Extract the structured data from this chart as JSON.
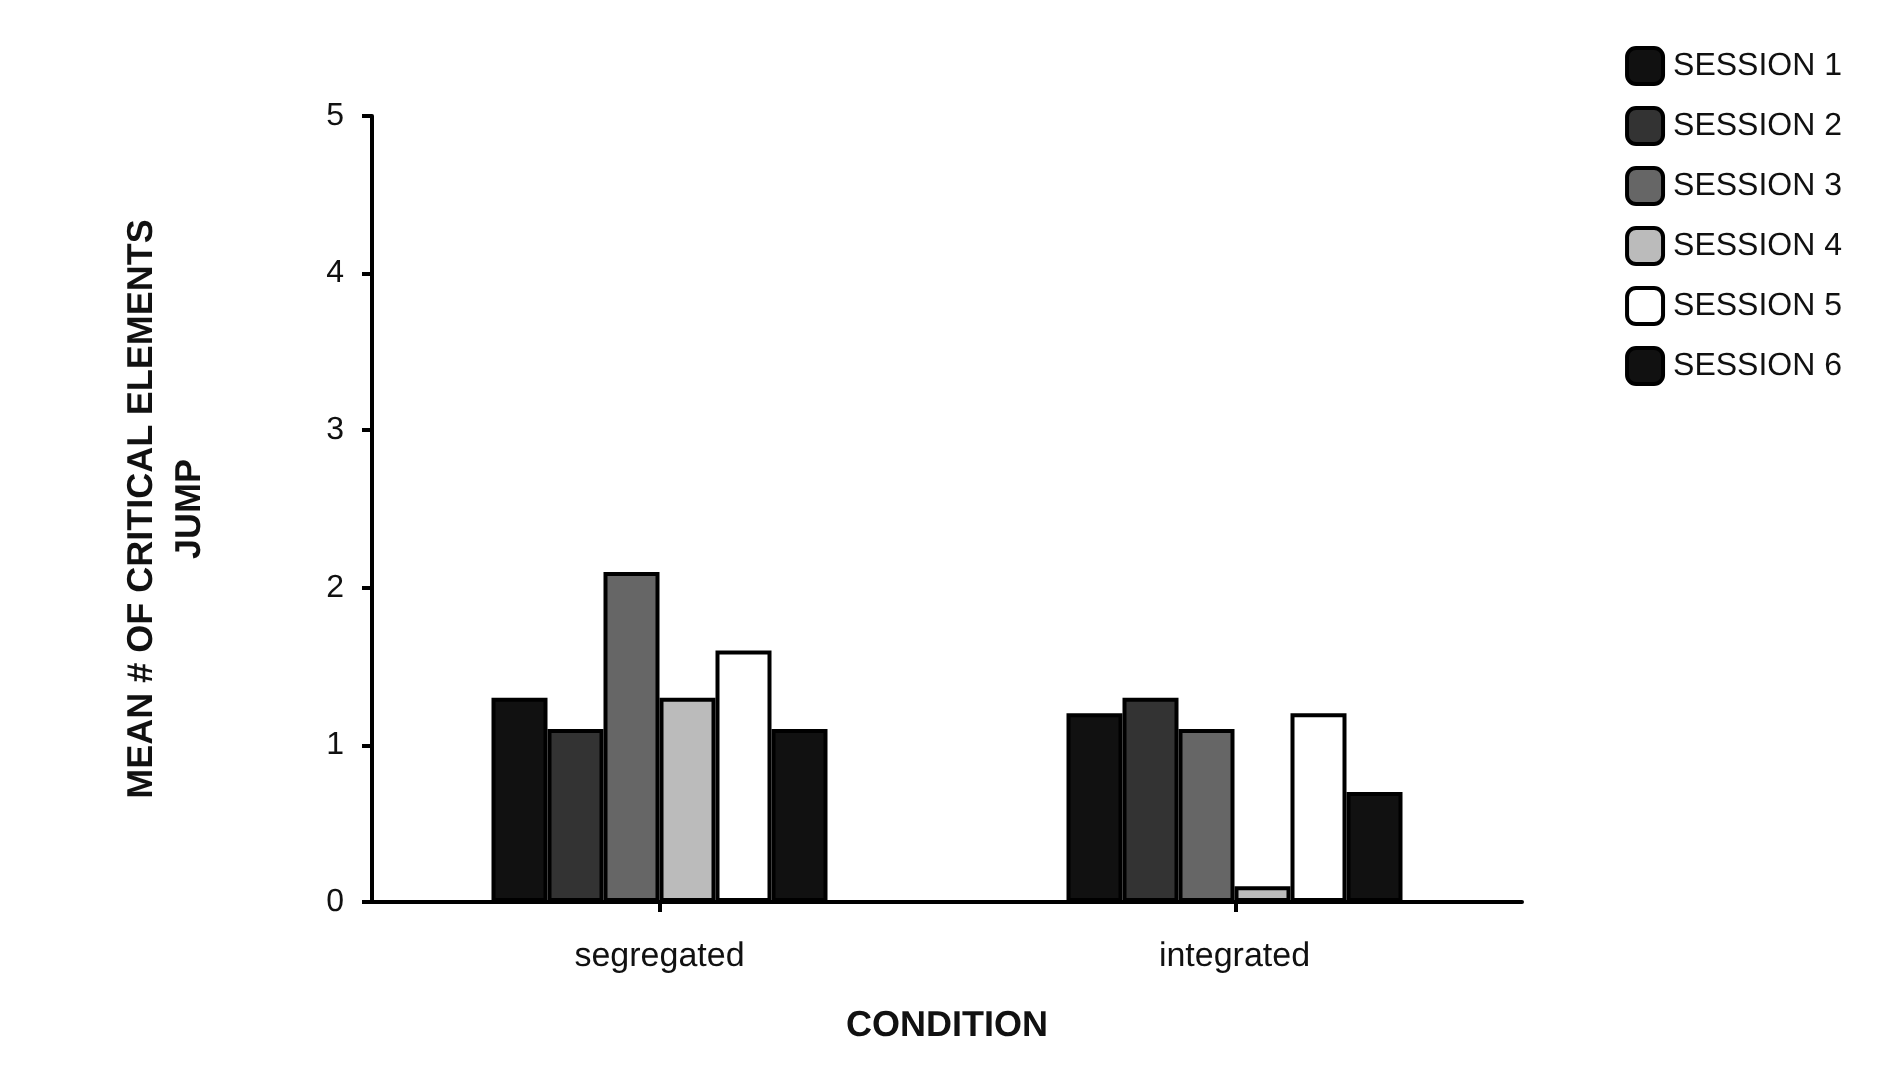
{
  "chart_data": {
    "type": "bar",
    "xlabel": "CONDITION",
    "ylabel": "MEAN # OF CRITICAL ELEMENTS\nJUMP",
    "categories": [
      "segregated",
      "integrated"
    ],
    "series": [
      {
        "name": "SESSION 1",
        "color": "#111111",
        "values": [
          1.3,
          1.2
        ]
      },
      {
        "name": "SESSION 2",
        "color": "#333333",
        "values": [
          1.1,
          1.3
        ]
      },
      {
        "name": "SESSION 3",
        "color": "#666666",
        "values": [
          2.1,
          1.1
        ]
      },
      {
        "name": "SESSION 4",
        "color": "#bbbbbb",
        "values": [
          1.3,
          0.1
        ]
      },
      {
        "name": "SESSION 5",
        "color": "#ffffff",
        "values": [
          1.6,
          1.2
        ]
      },
      {
        "name": "SESSION 6",
        "color": "#111111",
        "values": [
          1.1,
          0.7
        ]
      }
    ],
    "ylim": [
      0,
      5
    ],
    "yticks": [
      0,
      1,
      2,
      3,
      4,
      5
    ],
    "grid": false,
    "legend": "top right"
  }
}
